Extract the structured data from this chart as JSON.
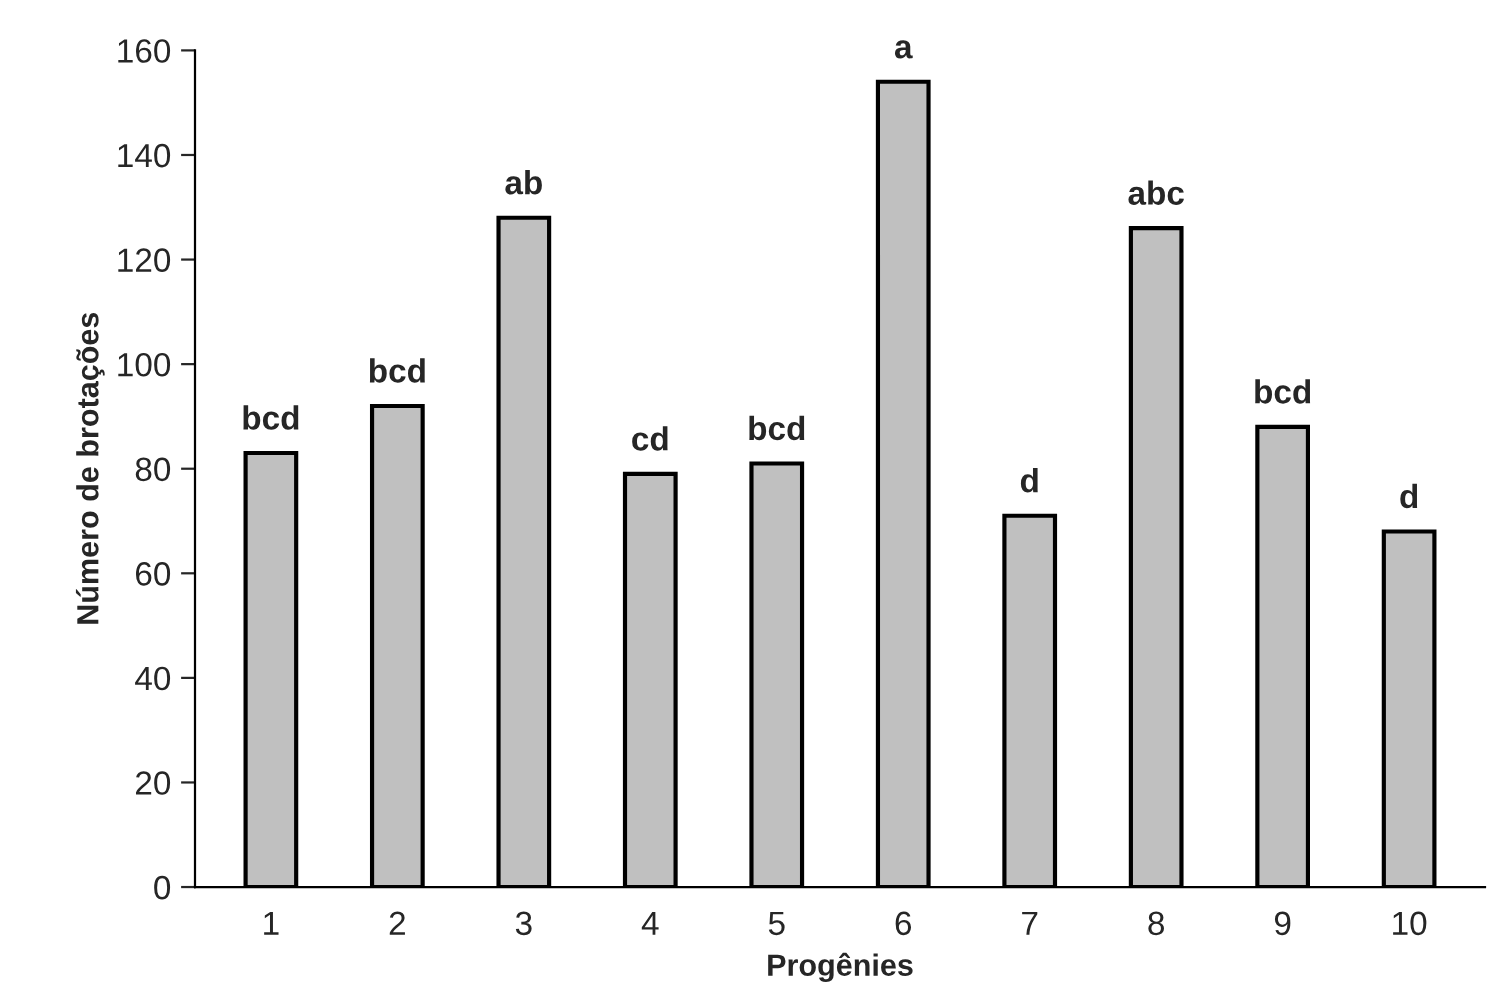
{
  "chart_data": {
    "type": "bar",
    "xlabel": "Progênies",
    "ylabel": "Número de brotações",
    "categories": [
      "1",
      "2",
      "3",
      "4",
      "5",
      "6",
      "7",
      "8",
      "9",
      "10"
    ],
    "values": [
      83,
      92,
      128,
      79,
      81,
      154,
      71,
      126,
      88,
      68
    ],
    "color": "#c0c0c0",
    "ylim": [
      0,
      160
    ],
    "yticks": [
      0,
      20,
      40,
      60,
      80,
      100,
      120,
      140,
      160
    ],
    "grid": false,
    "legend": false,
    "annotations": [
      {
        "text": "bcd",
        "x": "1",
        "y": 83
      },
      {
        "text": "bcd",
        "x": "2",
        "y": 92
      },
      {
        "text": "ab",
        "x": "3",
        "y": 128
      },
      {
        "text": "cd",
        "x": "4",
        "y": 79
      },
      {
        "text": "bcd",
        "x": "5",
        "y": 81
      },
      {
        "text": "a",
        "x": "6",
        "y": 154
      },
      {
        "text": "d",
        "x": "7",
        "y": 71
      },
      {
        "text": "abc",
        "x": "8",
        "y": 126
      },
      {
        "text": "bcd",
        "x": "9",
        "y": 88
      },
      {
        "text": "d",
        "x": "10",
        "y": 68
      }
    ]
  }
}
